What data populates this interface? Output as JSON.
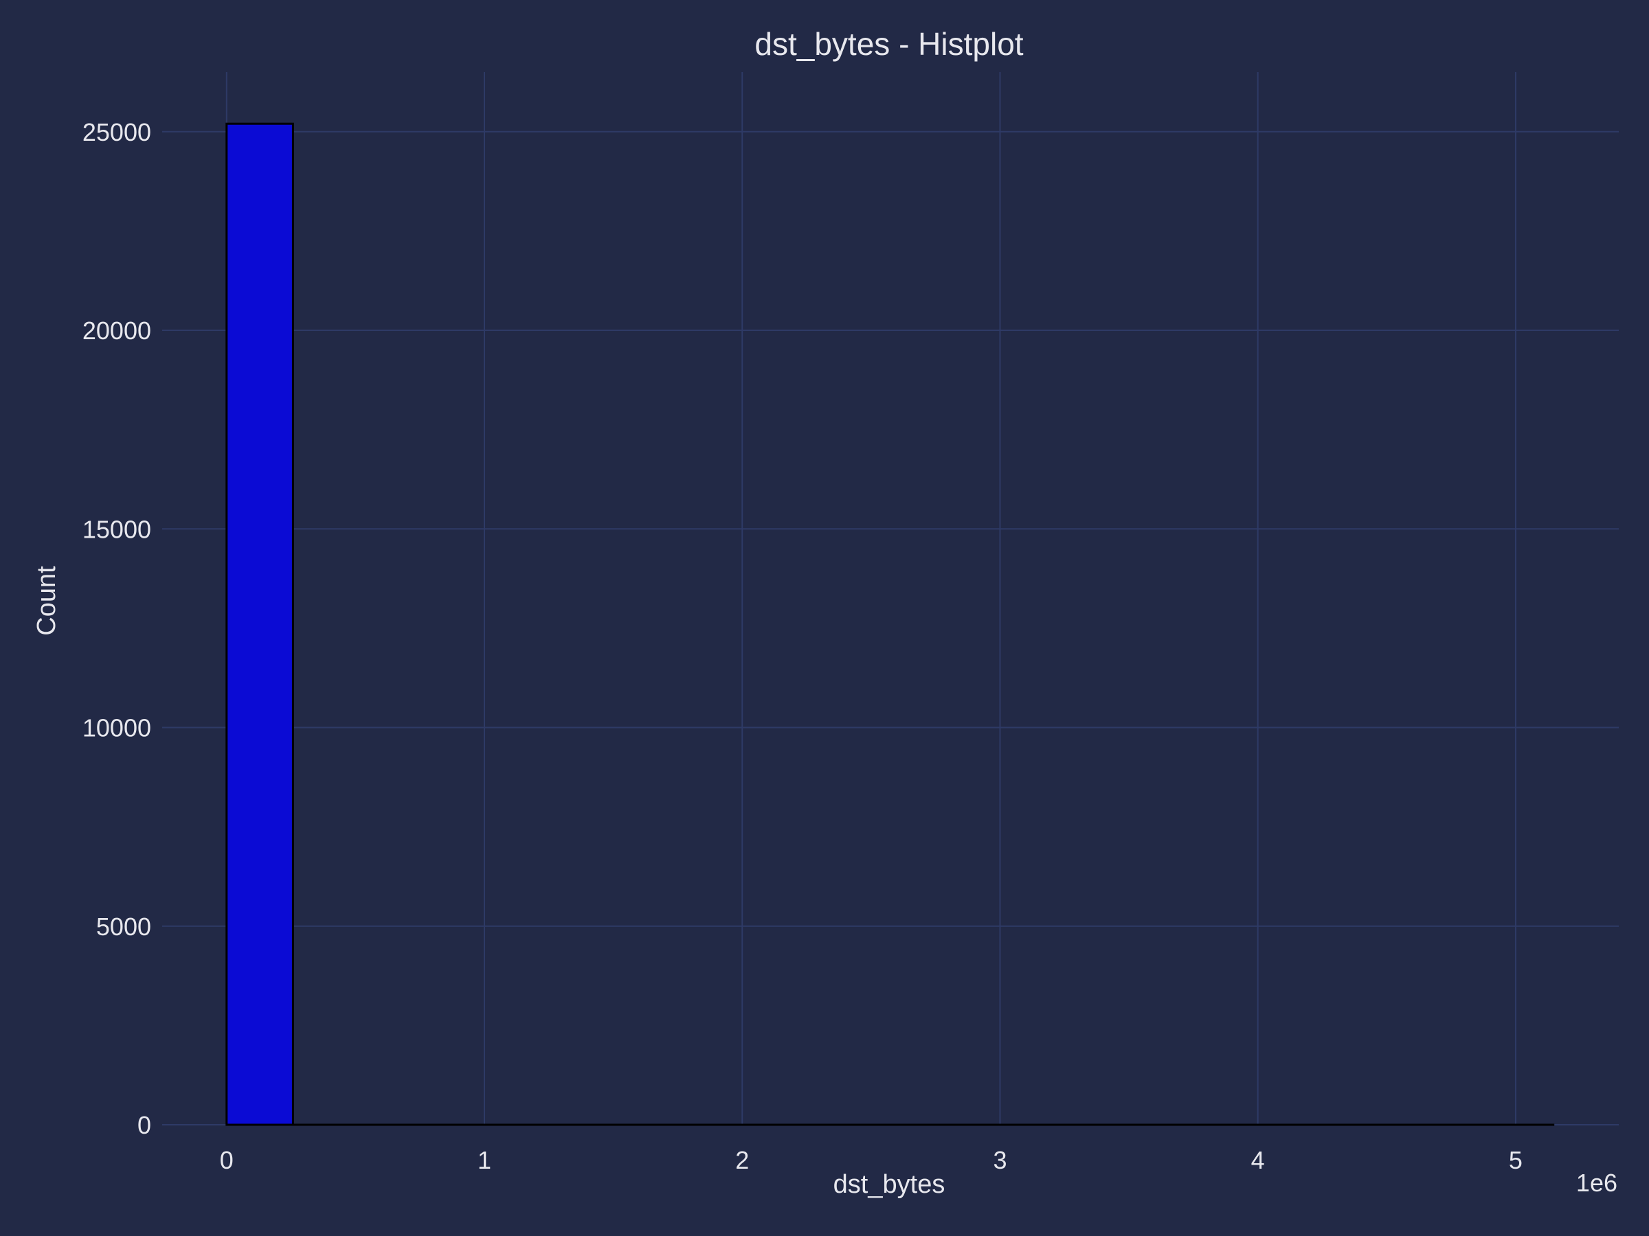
{
  "chart_data": {
    "type": "bar",
    "title": "dst_bytes - Histplot",
    "xlabel": "dst_bytes",
    "ylabel": "Count",
    "x_offset_label": "1e6",
    "x_scale": 1000000,
    "xlim": [
      -0.25,
      5.4
    ],
    "ylim": [
      0,
      26500
    ],
    "x_ticks": [
      0,
      1,
      2,
      3,
      4,
      5
    ],
    "y_ticks": [
      0,
      5000,
      10000,
      15000,
      20000,
      25000
    ],
    "grid": true,
    "bin_width": 0.2575,
    "bins": [
      {
        "start": 0.0,
        "count": 25200
      },
      {
        "start": 0.2575,
        "count": 0
      },
      {
        "start": 0.515,
        "count": 0
      },
      {
        "start": 0.7725,
        "count": 0
      },
      {
        "start": 1.03,
        "count": 0
      },
      {
        "start": 1.2875,
        "count": 0
      },
      {
        "start": 1.545,
        "count": 0
      },
      {
        "start": 1.8025,
        "count": 0
      },
      {
        "start": 2.06,
        "count": 0
      },
      {
        "start": 2.3175,
        "count": 0
      },
      {
        "start": 2.575,
        "count": 0
      },
      {
        "start": 2.8325,
        "count": 0
      },
      {
        "start": 3.09,
        "count": 0
      },
      {
        "start": 3.3475,
        "count": 0
      },
      {
        "start": 3.605,
        "count": 0
      },
      {
        "start": 3.8625,
        "count": 0
      },
      {
        "start": 4.12,
        "count": 0
      },
      {
        "start": 4.3775,
        "count": 0
      },
      {
        "start": 4.635,
        "count": 0
      },
      {
        "start": 4.8925,
        "count": 0
      }
    ],
    "colors": {
      "background": "#222946",
      "bar_fill": "#0b0bd4",
      "bar_edge": "#000000",
      "grid": "#2e3a66",
      "text": "#e8e8ee"
    }
  }
}
